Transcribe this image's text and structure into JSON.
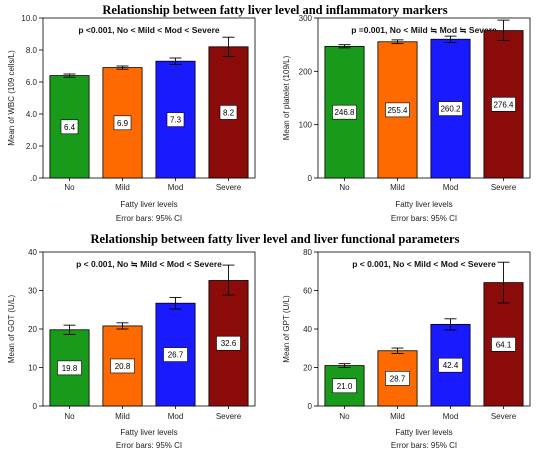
{
  "titles": {
    "top": "Relationship between fatty liver level and inflammatory markers",
    "bottom": "Relationship between fatty liver level and liver functional parameters"
  },
  "colors": [
    "#1a9a1a",
    "#ff6a00",
    "#1a1aff",
    "#8b0a0a"
  ],
  "chart_data": [
    {
      "type": "bar",
      "annotation": "p <0.001, No < Mild < Mod < Severe",
      "categories": [
        "No",
        "Mild",
        "Mod",
        "Severe"
      ],
      "values": [
        6.4,
        6.9,
        7.3,
        8.2
      ],
      "value_labels": [
        "6.4",
        "6.9",
        "7.3",
        "8.2"
      ],
      "error_bars": [
        [
          6.3,
          6.5
        ],
        [
          6.8,
          7.0
        ],
        [
          7.1,
          7.5
        ],
        [
          7.6,
          8.8
        ]
      ],
      "ylim": [
        0,
        10
      ],
      "yticks": [
        0,
        2,
        4,
        6,
        8,
        10
      ],
      "ytick_labels": [
        ".0",
        "2.0",
        "4.0",
        "6.0",
        "8.0",
        "10.0"
      ],
      "ylabel": "Mean of WBC (109 cells/L)",
      "xlabel": "Fatty liver levels",
      "note": "Error bars: 95% CI"
    },
    {
      "type": "bar",
      "annotation": "p =0.001, No < Mild ≒ Mod ≒ Severe",
      "categories": [
        "No",
        "Mild",
        "Mod",
        "Severe"
      ],
      "values": [
        246.8,
        255.4,
        260.2,
        276.4
      ],
      "value_labels": [
        "246.8",
        "255.4",
        "260.2",
        "276.4"
      ],
      "error_bars": [
        [
          244,
          250
        ],
        [
          252,
          259
        ],
        [
          254,
          266
        ],
        [
          258,
          296
        ]
      ],
      "ylim": [
        0,
        300
      ],
      "yticks": [
        0,
        100,
        200,
        300
      ],
      "ytick_labels": [
        "0",
        "100",
        "200",
        "300"
      ],
      "ylabel": "Mean of platelet (109/L)",
      "xlabel": "Fatty liver levels",
      "note": "Error bars: 95% CI"
    },
    {
      "type": "bar",
      "annotation": "p < 0.001, No ≒ Mild < Mod < Severe",
      "categories": [
        "No",
        "Mild",
        "Mod",
        "Severe"
      ],
      "values": [
        19.8,
        20.8,
        26.7,
        32.6
      ],
      "value_labels": [
        "19.8",
        "20.8",
        "26.7",
        "32.6"
      ],
      "error_bars": [
        [
          18.6,
          21.0
        ],
        [
          20.0,
          21.6
        ],
        [
          25.2,
          28.2
        ],
        [
          28.8,
          36.6
        ]
      ],
      "ylim": [
        0,
        40
      ],
      "yticks": [
        0,
        10,
        20,
        30,
        40
      ],
      "ytick_labels": [
        "0",
        "10",
        "20",
        "30",
        "40"
      ],
      "ylabel": "Mean of GOT (U/L)",
      "xlabel": "Fatty liver levels",
      "note": "Error bars: 95% CI"
    },
    {
      "type": "bar",
      "annotation": "p < 0.001, No < Mild < Mod < Severe",
      "categories": [
        "No",
        "Mild",
        "Mod",
        "Severe"
      ],
      "values": [
        21.0,
        28.7,
        42.4,
        64.1
      ],
      "value_labels": [
        "21.0",
        "28.7",
        "42.4",
        "64.1"
      ],
      "error_bars": [
        [
          20.0,
          22.0
        ],
        [
          27.3,
          30.1
        ],
        [
          39.5,
          45.3
        ],
        [
          53.5,
          74.7
        ]
      ],
      "ylim": [
        0,
        80
      ],
      "yticks": [
        0,
        20,
        40,
        60,
        80
      ],
      "ytick_labels": [
        "0",
        "20",
        "40",
        "60",
        "80"
      ],
      "ylabel": "Mean of GPT (U/L)",
      "xlabel": "Fatty liver levels",
      "note": "Error bars: 95% CI"
    }
  ]
}
